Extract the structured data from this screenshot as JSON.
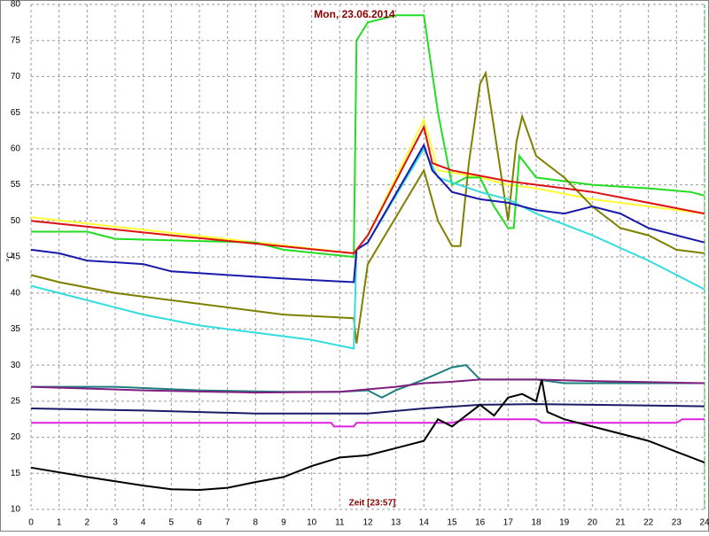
{
  "chart_data": {
    "type": "line",
    "title": "Mon, 23.06.2014",
    "x_label": "Zeit [23:57]",
    "y_label": "°C",
    "xlim": [
      0,
      24
    ],
    "ylim": [
      10,
      80
    ],
    "xticks": [
      0,
      1,
      2,
      3,
      4,
      5,
      6,
      7,
      8,
      9,
      10,
      11,
      12,
      13,
      14,
      15,
      16,
      17,
      18,
      19,
      20,
      21,
      22,
      23,
      24
    ],
    "yticks": [
      10,
      15,
      20,
      25,
      30,
      35,
      40,
      45,
      50,
      55,
      60,
      65,
      70,
      75,
      80
    ],
    "grid": true,
    "series": [
      {
        "color": "#ffff33",
        "x": [
          0,
          11.5,
          12,
          14,
          14.5,
          16,
          17,
          18,
          20,
          22,
          24
        ],
        "values": [
          50.5,
          45.5,
          48,
          64,
          57,
          56,
          55,
          54.5,
          53,
          52,
          51
        ]
      },
      {
        "color": "#22dd22",
        "x": [
          0,
          2,
          3,
          8,
          9,
          11.5,
          11.6,
          12,
          13,
          14,
          14.5,
          15,
          15.5,
          16,
          16.5,
          17,
          17.2,
          17.4,
          18,
          20,
          22,
          23.5,
          24
        ],
        "values": [
          48.5,
          48.5,
          47.5,
          47,
          46,
          45,
          75,
          77.5,
          78.5,
          78.5,
          65,
          55,
          56,
          56,
          52,
          49,
          49,
          59,
          56,
          55,
          54.5,
          54,
          53.5
        ]
      },
      {
        "color": "#808000",
        "x": [
          0,
          1,
          3,
          5,
          7,
          9,
          11.5,
          11.6,
          12,
          14,
          14.5,
          15,
          15.3,
          15.6,
          16,
          16.2,
          17,
          17.3,
          17.5,
          18,
          19,
          20,
          21,
          22,
          23,
          24
        ],
        "values": [
          42.5,
          41.5,
          40,
          39,
          38,
          37,
          36.5,
          33,
          44,
          57,
          50,
          46.5,
          46.5,
          58,
          69,
          70.5,
          50,
          61,
          64.5,
          59,
          56,
          52,
          49,
          48,
          46,
          45.5
        ]
      },
      {
        "color": "#33dddd",
        "x": [
          0,
          2,
          4,
          6,
          8,
          10,
          11.5,
          11.6,
          12,
          14,
          14.5,
          16,
          17,
          18,
          20,
          22,
          24
        ],
        "values": [
          41,
          39,
          37,
          35.5,
          34.5,
          33.5,
          32.3,
          46,
          47,
          60,
          56,
          54,
          53,
          51,
          48,
          44.5,
          40.5
        ]
      },
      {
        "color": "#1a1aaa",
        "x": [
          0,
          1,
          2,
          4,
          5,
          7,
          9,
          11.5,
          11.6,
          12,
          14,
          14.3,
          15,
          16,
          17,
          18,
          19,
          20,
          21,
          22,
          23,
          24
        ],
        "values": [
          46,
          45.5,
          44.5,
          44,
          43,
          42.5,
          42,
          41.5,
          46,
          47,
          60.5,
          57,
          54,
          53,
          52.5,
          51.5,
          51,
          52,
          51,
          49,
          48,
          47
        ]
      },
      {
        "color": "#dd1111",
        "x": [
          0,
          5,
          11.5,
          12,
          14,
          14.3,
          15,
          17,
          20,
          22,
          24
        ],
        "values": [
          50,
          48,
          45.5,
          48,
          63,
          58,
          57,
          55.5,
          54,
          52.5,
          51
        ]
      },
      {
        "color": "#1f7f7f",
        "x": [
          0,
          3,
          6,
          9,
          11,
          12,
          12.5,
          13,
          14,
          15,
          15.5,
          16,
          17,
          18,
          19,
          24
        ],
        "values": [
          27,
          27,
          26.5,
          26.3,
          26.3,
          26.5,
          25.5,
          26.5,
          28,
          29.7,
          30,
          28,
          28,
          28,
          27.5,
          27.5
        ]
      },
      {
        "color": "#7f1f7f",
        "x": [
          0,
          4,
          8,
          11,
          13,
          14,
          15,
          16,
          18,
          20,
          24
        ],
        "values": [
          27,
          26.5,
          26.2,
          26.3,
          27,
          27.5,
          27.7,
          28,
          28,
          27.8,
          27.5
        ]
      },
      {
        "color": "#1a1a66",
        "x": [
          0,
          4,
          8,
          12,
          14,
          16,
          18,
          20,
          24
        ],
        "values": [
          24,
          23.7,
          23.3,
          23.3,
          24,
          24.5,
          24.6,
          24.5,
          24.3
        ]
      },
      {
        "color": "#dd22dd",
        "x": [
          0,
          10.7,
          10.8,
          11.5,
          11.6,
          15,
          15.5,
          18,
          18.2,
          23,
          23.2,
          24
        ],
        "values": [
          22,
          22,
          21.5,
          21.5,
          22,
          22,
          22.5,
          22.5,
          22,
          22,
          22.5,
          22.5
        ]
      },
      {
        "color": "#000000",
        "x": [
          0,
          2,
          4,
          5,
          6,
          7,
          8,
          9,
          10,
          11,
          12,
          13,
          14,
          14.5,
          15,
          15.5,
          16,
          16.5,
          17,
          17.5,
          18,
          18.2,
          18.4,
          19,
          20,
          21,
          22,
          23,
          24
        ],
        "values": [
          15.8,
          14.5,
          13.3,
          12.8,
          12.7,
          13,
          13.8,
          14.5,
          16,
          17.2,
          17.5,
          18.5,
          19.5,
          22.5,
          21.5,
          23,
          24.5,
          23,
          25.5,
          26,
          25,
          28,
          23.5,
          22.5,
          21.5,
          20.5,
          19.5,
          18,
          16.5
        ]
      }
    ]
  }
}
